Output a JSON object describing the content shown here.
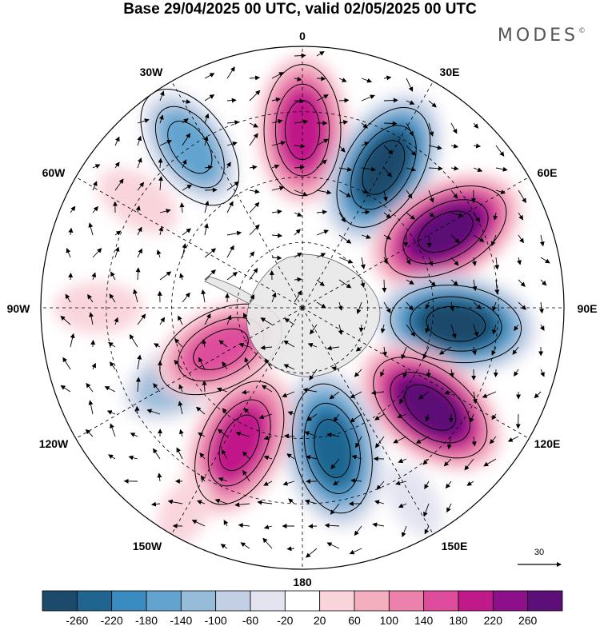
{
  "title": "Base 29/04/2025 00 UTC, valid 02/05/2025 00 UTC",
  "brand": {
    "name": "MODES",
    "mark": "©"
  },
  "longitude_labels": [
    {
      "id": "lon-0",
      "text": "0"
    },
    {
      "id": "lon-30e",
      "text": "30E"
    },
    {
      "id": "lon-60e",
      "text": "60E"
    },
    {
      "id": "lon-90e",
      "text": "90E"
    },
    {
      "id": "lon-120e",
      "text": "120E"
    },
    {
      "id": "lon-150e",
      "text": "150E"
    },
    {
      "id": "lon-180",
      "text": "180"
    },
    {
      "id": "lon-150w",
      "text": "150W"
    },
    {
      "id": "lon-120w",
      "text": "120W"
    },
    {
      "id": "lon-90w",
      "text": "90W"
    },
    {
      "id": "lon-60w",
      "text": "60W"
    },
    {
      "id": "lon-30w",
      "text": "30W"
    }
  ],
  "vector_reference": {
    "value": "30"
  },
  "colorbar": {
    "colors": [
      "#1b4a6b",
      "#1f6590",
      "#3a8bbf",
      "#62a4cf",
      "#97bcda",
      "#c3cfe4",
      "#e3e4f0",
      "#ffffff",
      "#f9d4db",
      "#f3aec0",
      "#ec82ab",
      "#de4d9c",
      "#c0198a",
      "#8d0f8a",
      "#5c0f76"
    ],
    "ticks": [
      "-260",
      "-220",
      "-180",
      "-140",
      "-100",
      "-60",
      "-20",
      "20",
      "60",
      "100",
      "140",
      "180",
      "220",
      "260"
    ]
  },
  "anomaly_centers": [
    {
      "lon_deg": 0,
      "r": 0.68,
      "value": 210
    },
    {
      "lon_deg": 30,
      "r": 0.62,
      "value": -290
    },
    {
      "lon_deg": 62,
      "r": 0.62,
      "value": 290
    },
    {
      "lon_deg": 96,
      "r": 0.59,
      "value": -290
    },
    {
      "lon_deg": 128,
      "r": 0.62,
      "value": 270
    },
    {
      "lon_deg": 168,
      "r": 0.55,
      "value": -250
    },
    {
      "lon_deg": 205,
      "r": 0.57,
      "value": 220
    },
    {
      "lon_deg": 240,
      "r": 0.55,
      "value": -130
    },
    {
      "lon_deg": 243,
      "r": 0.35,
      "value": 180
    },
    {
      "lon_deg": 303,
      "r": 0.75,
      "value": 60
    },
    {
      "lon_deg": 325,
      "r": 0.75,
      "value": -150
    },
    {
      "lon_deg": 270,
      "r": 0.78,
      "value": 60
    },
    {
      "lon_deg": 210,
      "r": 0.9,
      "value": 40
    },
    {
      "lon_deg": 150,
      "r": 0.85,
      "value": -40
    }
  ]
}
